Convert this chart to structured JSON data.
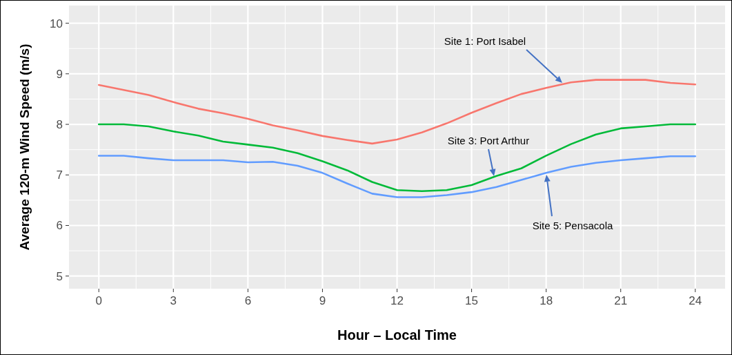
{
  "chart_data": {
    "type": "line",
    "xlabel": "Hour – Local Time",
    "ylabel": "Average 120-m Wind Speed (m/s)",
    "x": [
      0,
      1,
      2,
      3,
      4,
      5,
      6,
      7,
      8,
      9,
      10,
      11,
      12,
      13,
      14,
      15,
      16,
      17,
      18,
      19,
      20,
      21,
      22,
      23,
      24
    ],
    "series": [
      {
        "color": "#f8766d",
        "values": [
          8.78,
          8.68,
          8.58,
          8.44,
          8.31,
          8.22,
          8.11,
          7.98,
          7.88,
          7.77,
          7.69,
          7.62,
          7.7,
          7.84,
          8.02,
          8.23,
          8.42,
          8.6,
          8.72,
          8.83,
          8.88,
          8.88,
          8.88,
          8.82,
          8.79
        ]
      },
      {
        "color": "#00ba38",
        "values": [
          8.0,
          8.0,
          7.96,
          7.86,
          7.78,
          7.66,
          7.6,
          7.54,
          7.43,
          7.27,
          7.09,
          6.86,
          6.7,
          6.68,
          6.7,
          6.8,
          6.98,
          7.13,
          7.38,
          7.61,
          7.8,
          7.92,
          7.96,
          8.0,
          8.0
        ]
      },
      {
        "color": "#619cff",
        "values": [
          7.38,
          7.38,
          7.33,
          7.29,
          7.29,
          7.29,
          7.25,
          7.26,
          7.18,
          7.04,
          6.83,
          6.63,
          6.56,
          6.56,
          6.6,
          6.66,
          6.76,
          6.9,
          7.04,
          7.16,
          7.24,
          7.29,
          7.33,
          7.37,
          7.37
        ]
      }
    ],
    "xlim": [
      -1.2,
      25.2
    ],
    "ylim": [
      4.75,
      10.35
    ],
    "xticks": [
      0,
      3,
      6,
      9,
      12,
      15,
      18,
      21,
      24
    ],
    "yticks": [
      5,
      6,
      7,
      8,
      9,
      10
    ],
    "grid": true,
    "marker": "none",
    "line_style": "solid",
    "annotations": [
      "Site 1: Port Isabel",
      "Site 3: Port Arthur",
      "Site 5: Pensacola"
    ]
  }
}
